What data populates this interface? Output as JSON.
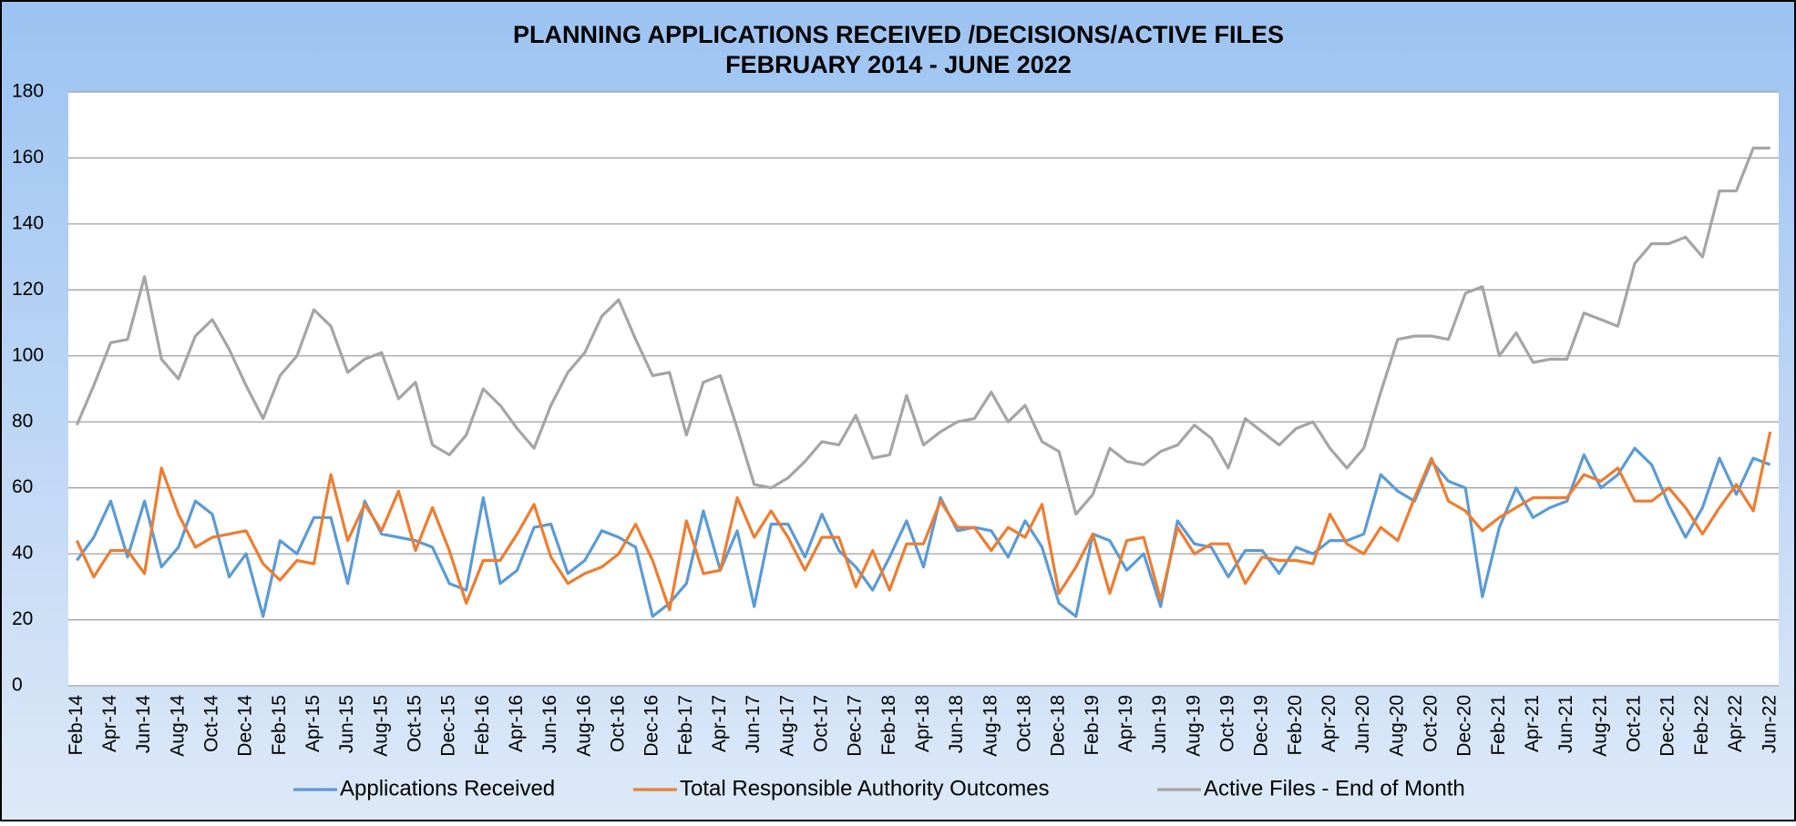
{
  "chart_data": {
    "type": "line",
    "title": "PLANNING APPLICATIONS RECEIVED /DECISIONS/ACTIVE FILES",
    "subtitle": "FEBRUARY 2014 - JUNE 2022",
    "categories": [
      "Feb-14",
      null,
      "Apr-14",
      null,
      "Jun-14",
      null,
      "Aug-14",
      null,
      "Oct-14",
      null,
      "Dec-14",
      null,
      "Feb-15",
      null,
      "Apr-15",
      null,
      "Jun-15",
      null,
      "Aug-15",
      null,
      "Oct-15",
      null,
      "Dec-15",
      null,
      "Feb-16",
      null,
      "Apr-16",
      null,
      "Jun-16",
      null,
      "Aug-16",
      null,
      "Oct-16",
      null,
      "Dec-16",
      null,
      "Feb-17",
      null,
      "Apr-17",
      null,
      "Jun-17",
      null,
      "Aug-17",
      null,
      "Oct-17",
      null,
      "Dec-17",
      null,
      "Feb-18",
      null,
      "Apr-18",
      null,
      "Jun-18",
      null,
      "Aug-18",
      null,
      "Oct-18",
      null,
      "Dec-18",
      null,
      "Feb-19",
      null,
      "Apr-19",
      null,
      "Jun-19",
      null,
      "Aug-19",
      null,
      "Oct-19",
      null,
      "Dec-19",
      null,
      "Feb-20",
      null,
      "Apr-20",
      null,
      "Jun-20",
      null,
      "Aug-20",
      null,
      "Oct-20",
      null,
      "Dec-20",
      null,
      "Feb-21",
      null,
      "Apr-21",
      null,
      "Jun-21",
      null,
      "Aug-21",
      null,
      "Oct-21",
      null,
      "Dec-21",
      null,
      "Feb-22",
      null,
      "Apr-22",
      null,
      "Jun-22"
    ],
    "series": [
      {
        "name": "Applications Received",
        "color": "#5b9bd5",
        "values": [
          38,
          45,
          56,
          39,
          56,
          36,
          42,
          56,
          52,
          33,
          40,
          21,
          44,
          40,
          51,
          51,
          31,
          56,
          46,
          45,
          44,
          42,
          31,
          29,
          57,
          31,
          35,
          48,
          49,
          34,
          38,
          47,
          45,
          42,
          21,
          25,
          31,
          53,
          35,
          47,
          24,
          49,
          49,
          39,
          52,
          41,
          36,
          29,
          39,
          50,
          36,
          57,
          47,
          48,
          47,
          39,
          50,
          42,
          25,
          21,
          46,
          44,
          35,
          40,
          24,
          50,
          43,
          42,
          33,
          41,
          41,
          34,
          42,
          40,
          44,
          44,
          46,
          64,
          59,
          56,
          68,
          62,
          60,
          27,
          48,
          60,
          51,
          54,
          56,
          70,
          60,
          64,
          72,
          67,
          55,
          45,
          54,
          69,
          58,
          69,
          67
        ]
      },
      {
        "name": "Total Responsible Authority Outcomes",
        "color": "#ed7d31",
        "values": [
          44,
          33,
          41,
          41,
          34,
          66,
          52,
          42,
          45,
          46,
          47,
          37,
          32,
          38,
          37,
          64,
          44,
          55,
          47,
          59,
          41,
          54,
          41,
          25,
          38,
          38,
          46,
          55,
          39,
          31,
          34,
          36,
          40,
          49,
          38,
          23,
          50,
          34,
          35,
          57,
          45,
          53,
          45,
          35,
          45,
          45,
          30,
          41,
          29,
          43,
          43,
          56,
          48,
          48,
          41,
          48,
          45,
          55,
          28,
          36,
          46,
          28,
          44,
          45,
          26,
          48,
          40,
          43,
          43,
          31,
          39,
          38,
          38,
          37,
          52,
          43,
          40,
          48,
          44,
          57,
          69,
          56,
          53,
          47,
          51,
          54,
          57,
          57,
          57,
          64,
          62,
          66,
          56,
          56,
          60,
          54,
          46,
          54,
          61,
          53,
          77
        ]
      },
      {
        "name": "Active Files - End of Month",
        "color": "#a5a5a5",
        "values": [
          79,
          91,
          104,
          105,
          124,
          99,
          93,
          106,
          111,
          102,
          91,
          81,
          94,
          100,
          114,
          109,
          95,
          99,
          101,
          87,
          92,
          73,
          70,
          76,
          90,
          85,
          78,
          72,
          85,
          95,
          101,
          112,
          117,
          105,
          94,
          95,
          76,
          92,
          94,
          78,
          61,
          60,
          63,
          68,
          74,
          73,
          82,
          69,
          70,
          88,
          73,
          77,
          80,
          81,
          89,
          80,
          85,
          74,
          71,
          52,
          58,
          72,
          68,
          67,
          71,
          73,
          79,
          75,
          66,
          81,
          77,
          73,
          78,
          80,
          72,
          66,
          72,
          89,
          105,
          106,
          106,
          105,
          119,
          121,
          100,
          107,
          98,
          99,
          99,
          113,
          111,
          109,
          128,
          134,
          134,
          136,
          130,
          150,
          150,
          163,
          163
        ]
      }
    ],
    "ylim": [
      0,
      180
    ],
    "yticks": [
      0,
      20,
      40,
      60,
      80,
      100,
      120,
      140,
      160,
      180
    ],
    "grid": true,
    "legend": "bottom"
  }
}
